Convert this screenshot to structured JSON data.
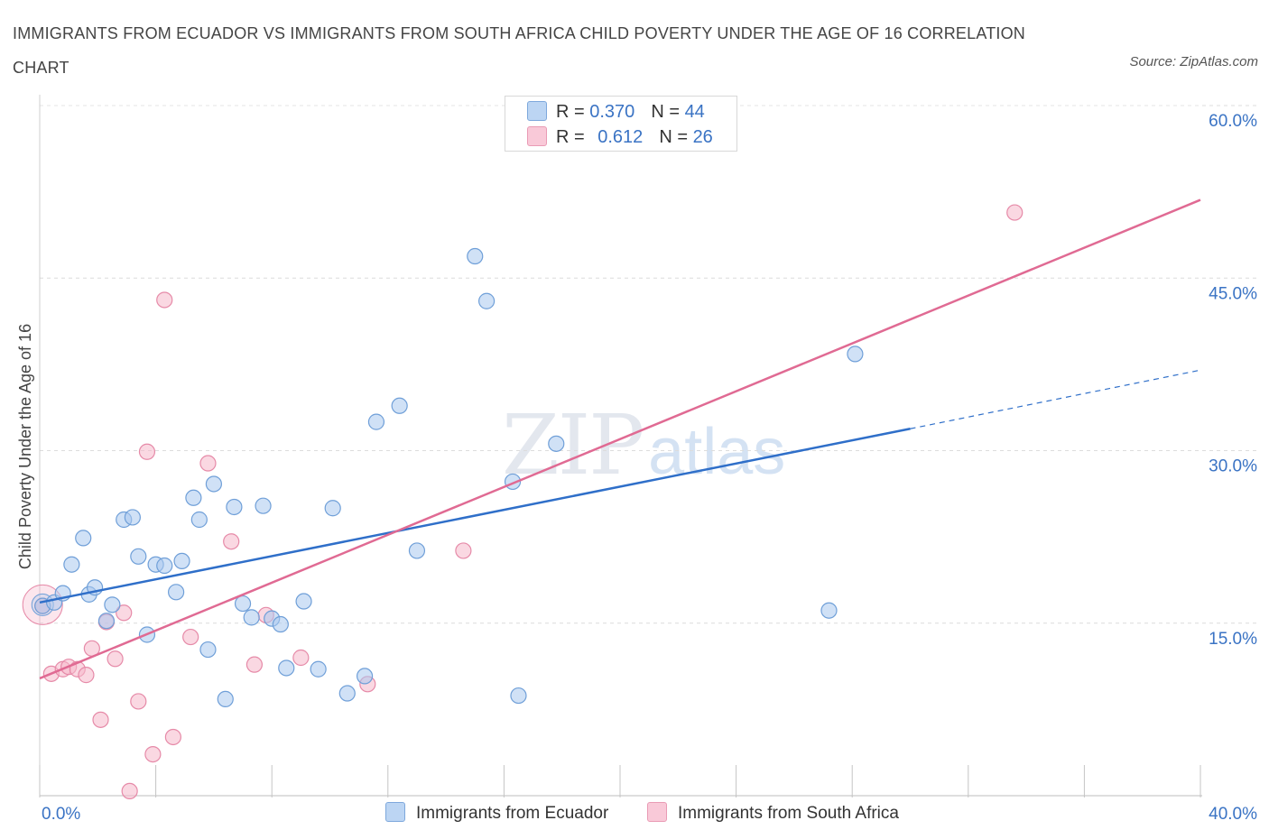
{
  "title": "IMMIGRANTS FROM ECUADOR VS IMMIGRANTS FROM SOUTH AFRICA CHILD POVERTY UNDER THE AGE OF 16 CORRELATION CHART",
  "source": "Source: ZipAtlas.com",
  "watermark": {
    "zip": "ZIP",
    "atlas": "atlas"
  },
  "legend_top": {
    "rows": [
      {
        "r_label": "R = ",
        "r_value": "0.370",
        "n_label": "N = ",
        "n_value": "44"
      },
      {
        "r_label": "R = ",
        "r_value": "0.612",
        "n_label": "N = ",
        "n_value": "26"
      }
    ]
  },
  "chart_data": {
    "type": "scatter",
    "ylabel": "Child Poverty Under the Age of 16",
    "xlim": [
      0,
      40
    ],
    "ylim": [
      0,
      60
    ],
    "x_tick_labels": [
      "0.0%",
      "40.0%"
    ],
    "y_ticks": [
      15,
      30,
      45,
      60
    ],
    "y_tick_labels": [
      "15.0%",
      "30.0%",
      "45.0%",
      "60.0%"
    ],
    "grid": true,
    "legend_position": "bottom",
    "colors": {
      "ecuador_fill": "#a9c8ee",
      "ecuador_stroke": "#6f9fd8",
      "ecuador_line": "#2f6fc9",
      "sa_fill": "#f5b8cb",
      "sa_stroke": "#e68aa8",
      "sa_line": "#e06a93",
      "tick_label": "#3a73c4"
    },
    "series": [
      {
        "name": "Immigrants from Ecuador",
        "r": 0.37,
        "n": 44,
        "trend": {
          "x0": 0,
          "y0": 16.8,
          "x1": 30,
          "y1": 31.9,
          "dash_x1": 40,
          "dash_y1": 37.0
        },
        "points": [
          [
            0.1,
            16.5
          ],
          [
            0.5,
            16.8
          ],
          [
            0.8,
            17.6
          ],
          [
            1.1,
            20.1
          ],
          [
            1.5,
            22.4
          ],
          [
            1.7,
            17.5
          ],
          [
            1.9,
            18.1
          ],
          [
            2.3,
            15.2
          ],
          [
            2.5,
            16.6
          ],
          [
            2.9,
            24.0
          ],
          [
            3.2,
            24.2
          ],
          [
            3.4,
            20.8
          ],
          [
            3.7,
            14.0
          ],
          [
            4.0,
            20.1
          ],
          [
            4.3,
            20.0
          ],
          [
            4.7,
            17.7
          ],
          [
            4.9,
            20.4
          ],
          [
            5.3,
            25.9
          ],
          [
            5.5,
            24.0
          ],
          [
            5.8,
            12.7
          ],
          [
            6.0,
            27.1
          ],
          [
            6.4,
            8.4
          ],
          [
            6.7,
            25.1
          ],
          [
            7.0,
            16.7
          ],
          [
            7.3,
            15.5
          ],
          [
            7.7,
            25.2
          ],
          [
            8.0,
            15.4
          ],
          [
            8.3,
            14.9
          ],
          [
            8.5,
            11.1
          ],
          [
            9.1,
            16.9
          ],
          [
            9.6,
            11.0
          ],
          [
            10.1,
            25.0
          ],
          [
            10.6,
            8.9
          ],
          [
            11.2,
            10.4
          ],
          [
            11.6,
            32.5
          ],
          [
            12.4,
            33.9
          ],
          [
            13.0,
            21.3
          ],
          [
            15.0,
            46.9
          ],
          [
            15.4,
            43.0
          ],
          [
            16.3,
            27.3
          ],
          [
            16.5,
            8.7
          ],
          [
            17.8,
            30.6
          ],
          [
            27.2,
            16.1
          ],
          [
            28.1,
            38.4
          ]
        ]
      },
      {
        "name": "Immigrants from South Africa",
        "r": 0.612,
        "n": 26,
        "trend": {
          "x0": 0,
          "y0": 10.2,
          "x1": 40,
          "y1": 51.8
        },
        "points": [
          [
            0.1,
            16.5
          ],
          [
            0.4,
            10.6
          ],
          [
            0.8,
            11.0
          ],
          [
            1.0,
            11.2
          ],
          [
            1.3,
            11.0
          ],
          [
            1.6,
            10.5
          ],
          [
            1.8,
            12.8
          ],
          [
            2.1,
            6.6
          ],
          [
            2.3,
            15.1
          ],
          [
            2.6,
            11.9
          ],
          [
            2.9,
            15.9
          ],
          [
            3.1,
            0.4
          ],
          [
            3.4,
            8.2
          ],
          [
            3.7,
            29.9
          ],
          [
            3.9,
            3.6
          ],
          [
            4.3,
            43.1
          ],
          [
            4.6,
            5.1
          ],
          [
            5.2,
            13.8
          ],
          [
            5.8,
            28.9
          ],
          [
            6.6,
            22.1
          ],
          [
            7.4,
            11.4
          ],
          [
            7.8,
            15.7
          ],
          [
            9.0,
            12.0
          ],
          [
            11.3,
            9.7
          ],
          [
            14.6,
            21.3
          ],
          [
            33.6,
            50.7
          ]
        ]
      }
    ]
  }
}
